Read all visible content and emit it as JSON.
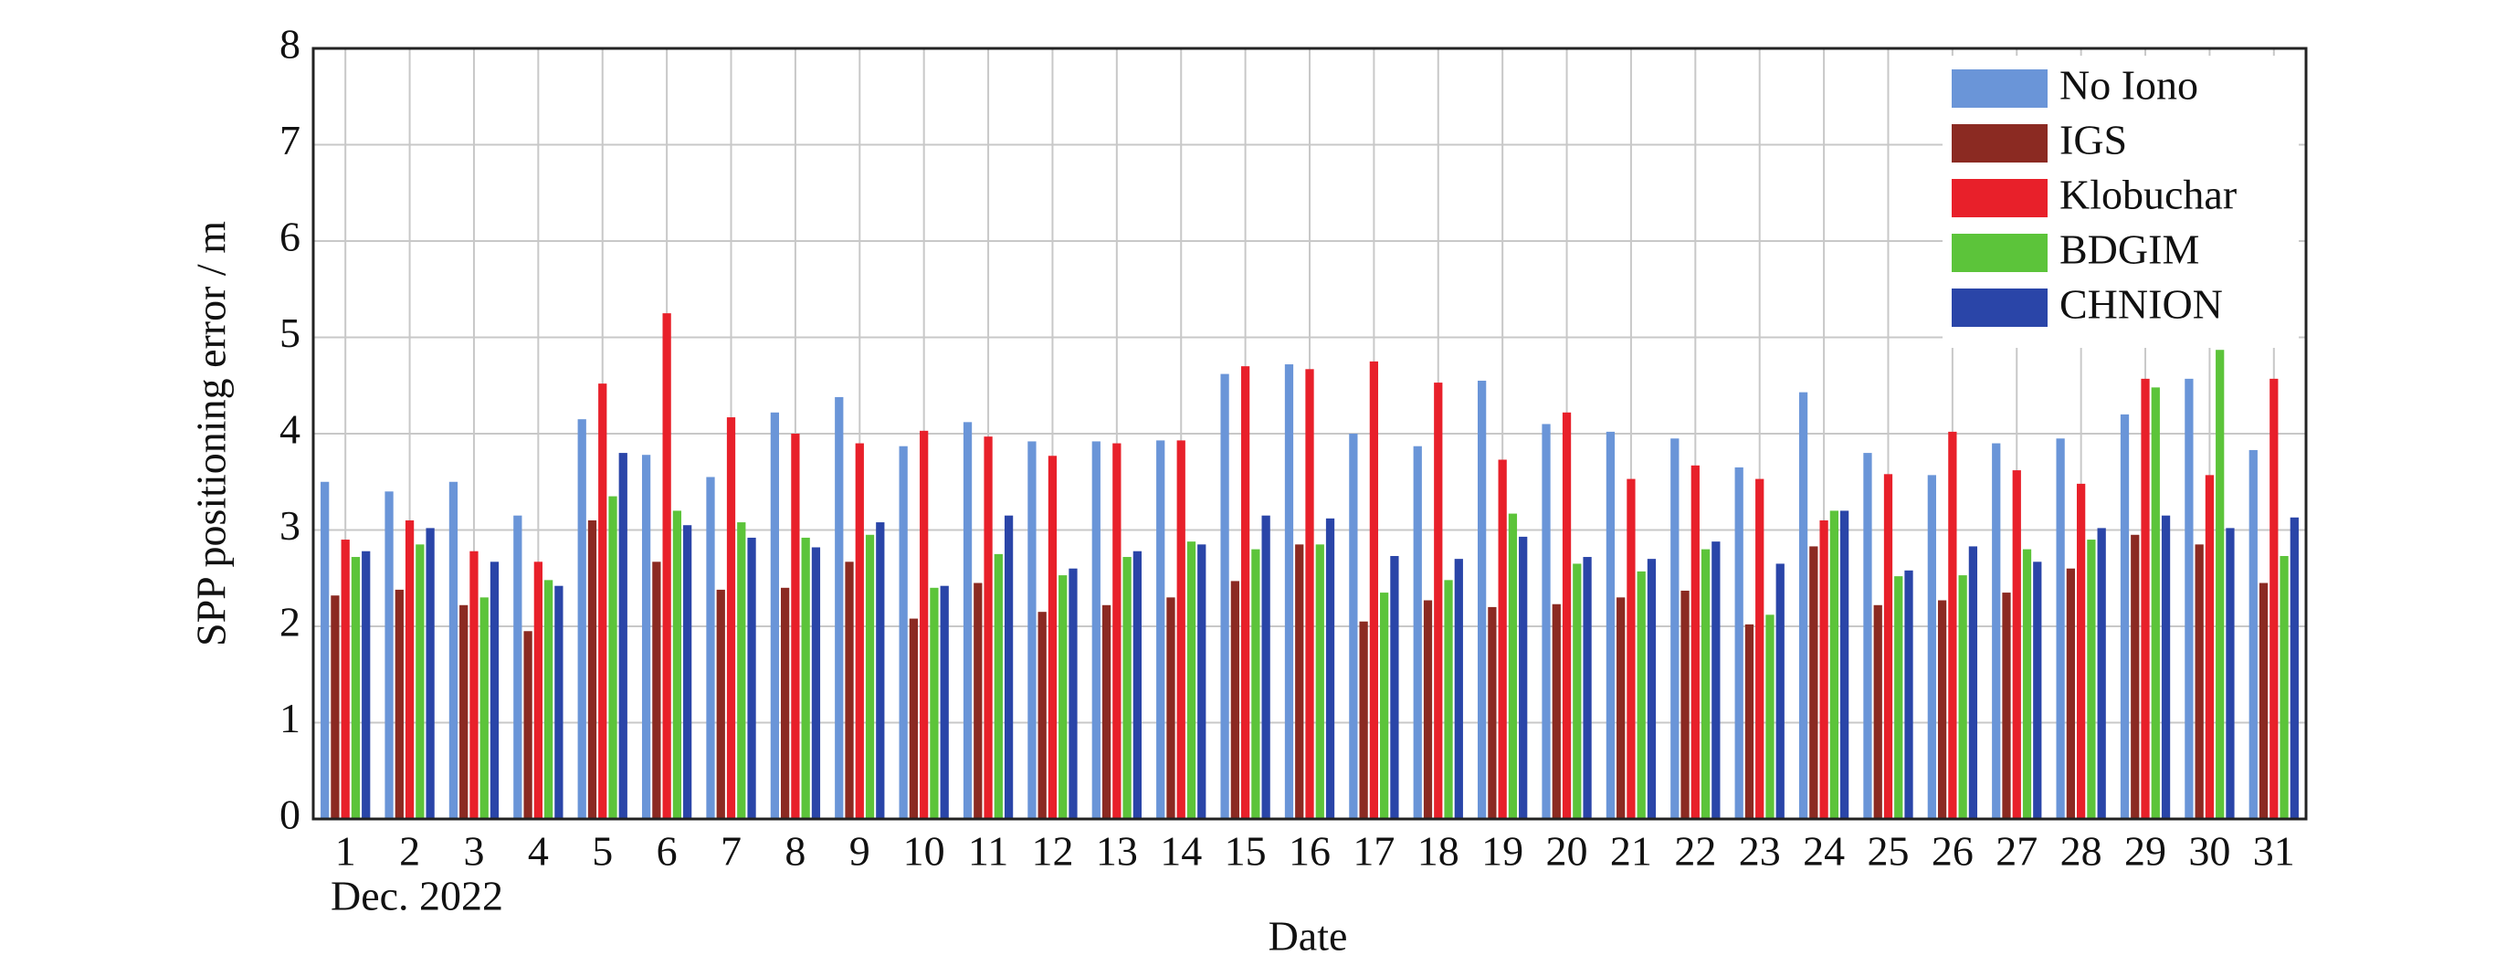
{
  "chart_data": {
    "type": "bar",
    "x_label": "Date",
    "y_label": "SPP positioning error / m",
    "annotation": "Dec. 2022",
    "categories": [
      "1",
      "2",
      "3",
      "4",
      "5",
      "6",
      "7",
      "8",
      "9",
      "10",
      "11",
      "12",
      "13",
      "14",
      "15",
      "16",
      "17",
      "18",
      "19",
      "20",
      "21",
      "22",
      "23",
      "24",
      "25",
      "26",
      "27",
      "28",
      "29",
      "30",
      "31"
    ],
    "series": [
      {
        "name": "No Iono",
        "color": "#6a95d8",
        "values": [
          3.5,
          3.4,
          3.5,
          3.15,
          4.15,
          3.78,
          3.55,
          4.22,
          4.38,
          3.87,
          4.12,
          3.92,
          3.92,
          3.93,
          4.62,
          4.72,
          4.0,
          3.87,
          4.55,
          4.1,
          4.02,
          3.95,
          3.65,
          4.43,
          3.8,
          3.57,
          3.9,
          3.95,
          4.2,
          4.57,
          3.83
        ]
      },
      {
        "name": "IGS",
        "color": "#8b2a22",
        "values": [
          2.32,
          2.38,
          2.22,
          1.95,
          3.1,
          2.67,
          2.38,
          2.4,
          2.67,
          2.08,
          2.45,
          2.15,
          2.22,
          2.3,
          2.47,
          2.85,
          2.05,
          2.27,
          2.2,
          2.23,
          2.3,
          2.37,
          2.02,
          2.83,
          2.22,
          2.27,
          2.35,
          2.6,
          2.95,
          2.85,
          2.45
        ]
      },
      {
        "name": "Klobuchar",
        "color": "#e8202a",
        "values": [
          2.9,
          3.1,
          2.78,
          2.67,
          4.52,
          5.25,
          4.17,
          4.0,
          3.9,
          4.03,
          3.97,
          3.77,
          3.9,
          3.93,
          4.7,
          4.67,
          4.75,
          4.53,
          3.73,
          4.22,
          3.53,
          3.67,
          3.53,
          3.1,
          3.58,
          4.02,
          3.62,
          3.48,
          4.57,
          3.57,
          4.57
        ]
      },
      {
        "name": "BDGIM",
        "color": "#5cc43a",
        "values": [
          2.72,
          2.85,
          2.3,
          2.48,
          3.35,
          3.2,
          3.08,
          2.92,
          2.95,
          2.4,
          2.75,
          2.53,
          2.72,
          2.88,
          2.8,
          2.85,
          2.35,
          2.48,
          3.17,
          2.65,
          2.57,
          2.8,
          2.12,
          3.2,
          2.52,
          2.53,
          2.8,
          2.9,
          4.48,
          4.87,
          2.73
        ]
      },
      {
        "name": "CHNION",
        "color": "#2a45a8",
        "values": [
          2.78,
          3.02,
          2.67,
          2.42,
          3.8,
          3.05,
          2.92,
          2.82,
          3.08,
          2.42,
          3.15,
          2.6,
          2.78,
          2.85,
          3.15,
          3.12,
          2.73,
          2.7,
          2.93,
          2.72,
          2.7,
          2.88,
          2.65,
          3.2,
          2.58,
          2.83,
          2.67,
          3.02,
          3.15,
          3.02,
          3.13
        ]
      }
    ],
    "ylim": [
      0,
      8
    ],
    "yticks": [
      0,
      1,
      2,
      3,
      4,
      5,
      6,
      7,
      8
    ],
    "grid": true,
    "legend": "upper right"
  }
}
